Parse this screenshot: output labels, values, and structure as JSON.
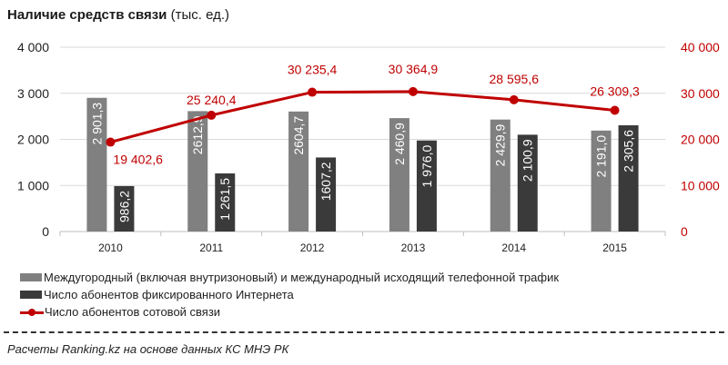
{
  "header": {
    "title_bold": "Наличие средств связи",
    "title_unit": "(тыс. ед.)"
  },
  "colors": {
    "bar_light": "#808080",
    "bar_dark": "#3a3a3a",
    "line": "#c00000",
    "right_axis_text": "#c00000",
    "grid": "#d9d9d9"
  },
  "chart_data": {
    "type": "bar",
    "title": "Наличие средств связи (тыс. ед.)",
    "categories": [
      "2010",
      "2011",
      "2012",
      "2013",
      "2014",
      "2015"
    ],
    "series": [
      {
        "name": "Междугородный (включая внутризоновый) и международный исходящий телефонной трафик",
        "type": "bar",
        "axis": "left",
        "color": "#808080",
        "values": [
          2901.3,
          2612.9,
          2604.7,
          2460.9,
          2429.9,
          2191.0
        ],
        "labels": [
          "2 901,3",
          "2612,9",
          "2604,7",
          "2 460,9",
          "2 429,9",
          "2 191,0"
        ]
      },
      {
        "name": "Число абонентов фиксированного Интернета",
        "type": "bar",
        "axis": "left",
        "color": "#3a3a3a",
        "values": [
          986.2,
          1261.5,
          1607.2,
          1976.0,
          2100.9,
          2305.6
        ],
        "labels": [
          "986,2",
          "1 261,5",
          "1607,2",
          "1 976,0",
          "2 100,9",
          "2 305,6"
        ]
      },
      {
        "name": "Число абонентов сотовой связи",
        "type": "line",
        "axis": "right",
        "color": "#c00000",
        "values": [
          19402.6,
          25240.4,
          30235.4,
          30364.9,
          28595.6,
          26309.3
        ],
        "labels": [
          "19 402,6",
          "25 240,4",
          "30 235,4",
          "30 364,9",
          "28 595,6",
          "26 309,3"
        ]
      }
    ],
    "left_axis": {
      "ylim": [
        0,
        4000
      ],
      "ticks": [
        "0",
        "1 000",
        "2 000",
        "3 000",
        "4 000"
      ]
    },
    "right_axis": {
      "ylim": [
        0,
        40000
      ],
      "ticks": [
        "0",
        "10 000",
        "20 000",
        "30 000",
        "40 000"
      ]
    },
    "xlabel": "",
    "ylabel": "",
    "grid": true,
    "legend_position": "bottom-left"
  },
  "legend": {
    "items": [
      {
        "label": "Междугородный (включая внутризоновый) и международный исходящий телефонной трафик"
      },
      {
        "label": "Число абонентов фиксированного Интернета"
      },
      {
        "label": "Число абонентов сотовой связи"
      }
    ]
  },
  "footer": {
    "source": "Расчеты Ranking.kz на основе данных  КС МНЭ РК"
  }
}
